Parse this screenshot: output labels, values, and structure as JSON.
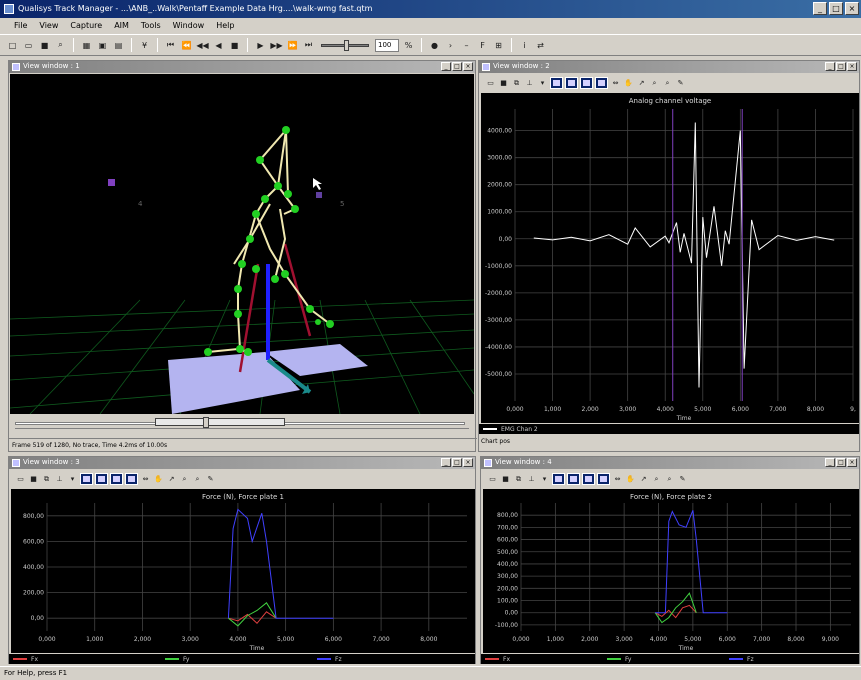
{
  "window": {
    "title": "Qualisys Track Manager - ...\\ANB_..Walk\\Pentaff Example Data Hrg....\\walk-wmg fast.qtm"
  },
  "menu": [
    "File",
    "View",
    "Capture",
    "AIM",
    "Tools",
    "Window",
    "Help"
  ],
  "toolbar": {
    "zoom_value": "100"
  },
  "views": {
    "view1": {
      "title": "View window : 1",
      "status": "Frame 519 of 1280, No trace, Time 4.2ms of 10.00s",
      "marker_labels": [
        "4",
        "5"
      ]
    },
    "view2": {
      "title": "View window : 2",
      "chart_title": "Analog channel voltage",
      "xlabel": "Time",
      "legend_label": "EMG Chan 2",
      "bottom_text": "Chart pos"
    },
    "view3": {
      "title": "View window : 3",
      "chart_title": "Force (N), Force plate 1",
      "xlabel": "Time",
      "legend": [
        "Fx",
        "Fy",
        "Fz"
      ]
    },
    "view4": {
      "title": "View window : 4",
      "chart_title": "Force (N), Force plate 2",
      "xlabel": "Time",
      "legend": [
        "Fx",
        "Fy",
        "Fz"
      ]
    }
  },
  "status_bar": {
    "text": "For Help, press F1"
  },
  "chart_data": [
    {
      "type": "line",
      "title": "Analog channel voltage",
      "xlabel": "Time",
      "ylabel": "",
      "x_ticks": [
        "0,000",
        "1,000",
        "2,000",
        "3,000",
        "4,000",
        "5,000",
        "6,000",
        "7,000",
        "8,000",
        "9,"
      ],
      "y_ticks": [
        "4000,00",
        "3000,00",
        "2000,00",
        "1000,00",
        "0,00",
        "-1000,00",
        "-2000,00",
        "-3000,00",
        "-4000,00",
        "-5000,00"
      ],
      "xlim": [
        0,
        9
      ],
      "ylim": [
        -6000,
        4800
      ],
      "series": [
        {
          "name": "EMG Chan 2",
          "color": "#ffffff",
          "x": [
            0.5,
            1.0,
            1.5,
            2.0,
            2.5,
            3.0,
            3.2,
            3.6,
            4.0,
            4.1,
            4.3,
            4.4,
            4.5,
            4.7,
            4.8,
            4.9,
            5.0,
            5.1,
            5.3,
            5.5,
            5.6,
            5.7,
            6.0,
            6.1,
            6.3,
            6.5,
            7.0,
            7.5,
            8.0,
            8.5
          ],
          "y": [
            30,
            -40,
            60,
            -80,
            150,
            -200,
            400,
            -300,
            100,
            -150,
            600,
            -500,
            200,
            -900,
            4300,
            -5500,
            800,
            -700,
            1200,
            -1000,
            300,
            -200,
            4000,
            -4800,
            700,
            -400,
            120,
            -60,
            80,
            -50
          ]
        }
      ]
    },
    {
      "type": "line",
      "title": "Force (N), Force plate 1",
      "xlabel": "Time",
      "x_ticks": [
        "0,000",
        "1,000",
        "2,000",
        "3,000",
        "4,000",
        "5,000",
        "6,000",
        "7,000",
        "8,000"
      ],
      "y_ticks": [
        "800,00",
        "600,00",
        "400,00",
        "200,00",
        "0,00"
      ],
      "xlim": [
        0,
        8.8
      ],
      "ylim": [
        -100,
        900
      ],
      "series": [
        {
          "name": "Fx",
          "color": "#e04040",
          "x": [
            3.8,
            4.0,
            4.2,
            4.4,
            4.6,
            4.8
          ],
          "y": [
            0,
            -20,
            30,
            -40,
            50,
            0
          ]
        },
        {
          "name": "Fy",
          "color": "#40d040",
          "x": [
            3.8,
            4.0,
            4.2,
            4.4,
            4.6,
            4.8
          ],
          "y": [
            0,
            -60,
            20,
            60,
            120,
            0
          ]
        },
        {
          "name": "Fz",
          "color": "#4040ff",
          "x": [
            3.8,
            3.9,
            4.0,
            4.2,
            4.3,
            4.5,
            4.6,
            4.8,
            5.0,
            6.0
          ],
          "y": [
            0,
            700,
            850,
            780,
            600,
            820,
            600,
            0,
            0,
            0
          ]
        }
      ]
    },
    {
      "type": "line",
      "title": "Force (N), Force plate 2",
      "xlabel": "Time",
      "x_ticks": [
        "0,000",
        "1,000",
        "2,000",
        "3,000",
        "4,000",
        "5,000",
        "6,000",
        "7,000",
        "8,000",
        "9,000"
      ],
      "y_ticks": [
        "800,00",
        "700,00",
        "600,00",
        "500,00",
        "400,00",
        "300,00",
        "200,00",
        "100,00",
        "0,00",
        "-100,00"
      ],
      "xlim": [
        0,
        9.6
      ],
      "ylim": [
        -150,
        900
      ],
      "series": [
        {
          "name": "Fx",
          "color": "#e04040",
          "x": [
            3.9,
            4.1,
            4.3,
            4.5,
            4.7,
            4.9,
            5.1
          ],
          "y": [
            0,
            -30,
            20,
            -40,
            40,
            60,
            0
          ]
        },
        {
          "name": "Fy",
          "color": "#40d040",
          "x": [
            3.9,
            4.1,
            4.3,
            4.5,
            4.7,
            4.9,
            5.1
          ],
          "y": [
            0,
            -80,
            -40,
            40,
            90,
            160,
            0
          ]
        },
        {
          "name": "Fz",
          "color": "#4040ff",
          "x": [
            3.9,
            4.2,
            4.3,
            4.4,
            4.6,
            4.8,
            5.0,
            5.1,
            5.3,
            6.0
          ],
          "y": [
            0,
            0,
            750,
            830,
            720,
            700,
            840,
            600,
            0,
            0
          ]
        }
      ]
    }
  ]
}
